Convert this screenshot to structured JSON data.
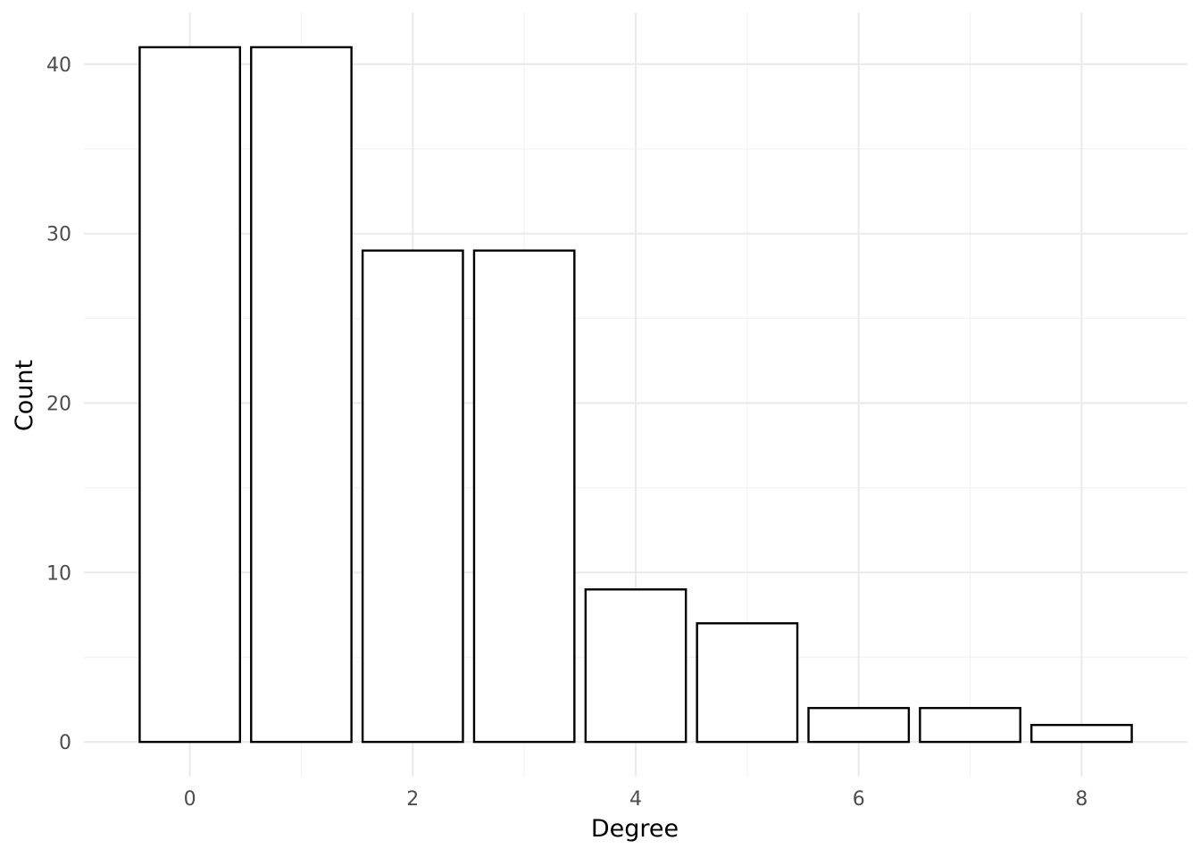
{
  "chart_data": {
    "type": "bar",
    "x": [
      0,
      1,
      2,
      3,
      4,
      5,
      6,
      7,
      8
    ],
    "values": [
      41,
      41,
      29,
      29,
      9,
      7,
      2,
      2,
      1
    ],
    "xlabel": "Degree",
    "ylabel": "Count",
    "x_ticks": [
      "0",
      "2",
      "4",
      "6",
      "8"
    ],
    "y_ticks": [
      "0",
      "10",
      "20",
      "30",
      "40"
    ],
    "xlim": [
      -0.95,
      8.95
    ],
    "ylim": [
      -2.05,
      43.05
    ],
    "grid": true,
    "bar_fill": "#ffffff",
    "bar_outline": "#000000"
  }
}
